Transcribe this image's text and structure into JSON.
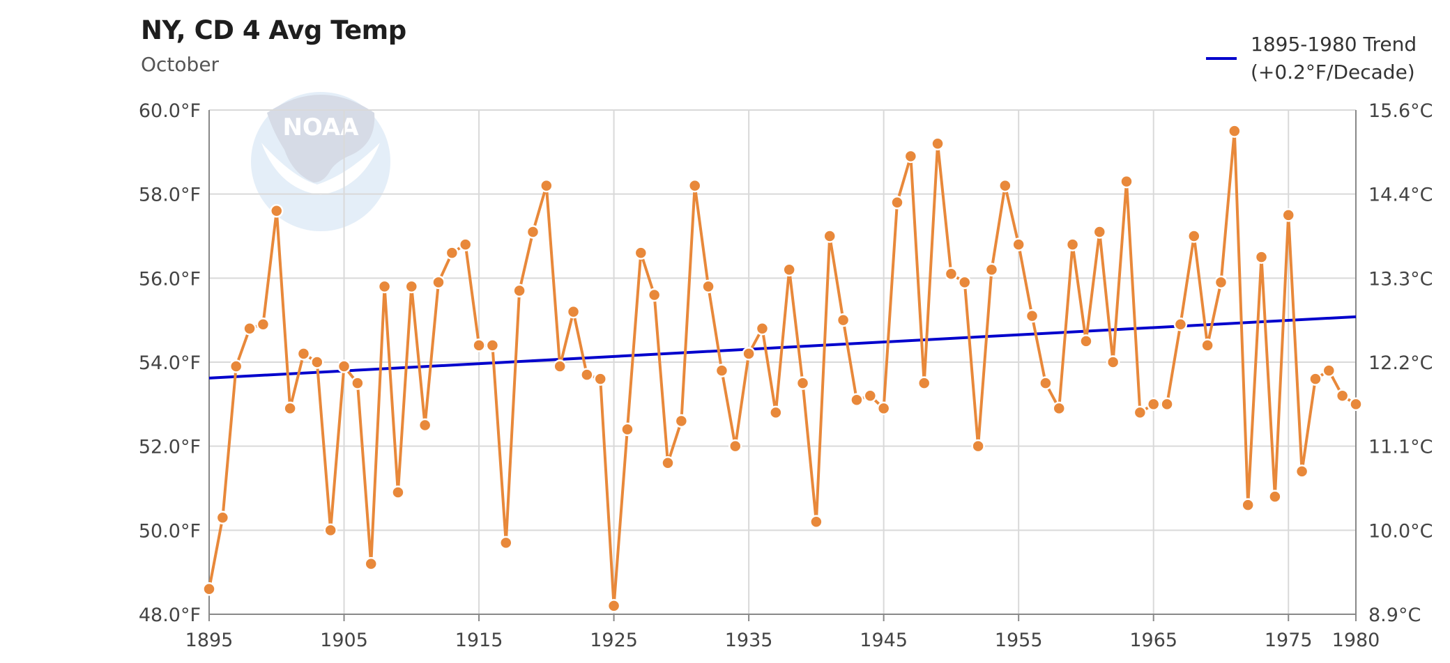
{
  "chart_data": {
    "type": "line",
    "title": "NY, CD 4 Avg Temp",
    "subtitle": "October",
    "x": [
      1895,
      1896,
      1897,
      1898,
      1899,
      1900,
      1901,
      1902,
      1903,
      1904,
      1905,
      1906,
      1907,
      1908,
      1909,
      1910,
      1911,
      1912,
      1913,
      1914,
      1915,
      1916,
      1917,
      1918,
      1919,
      1920,
      1921,
      1922,
      1923,
      1924,
      1925,
      1926,
      1927,
      1928,
      1929,
      1930,
      1931,
      1932,
      1933,
      1934,
      1935,
      1936,
      1937,
      1938,
      1939,
      1940,
      1941,
      1942,
      1943,
      1944,
      1945,
      1946,
      1947,
      1948,
      1949,
      1950,
      1951,
      1952,
      1953,
      1954,
      1955,
      1956,
      1957,
      1958,
      1959,
      1960,
      1961,
      1962,
      1963,
      1964,
      1965,
      1966,
      1967,
      1968,
      1969,
      1970,
      1971,
      1972,
      1973,
      1974,
      1975,
      1976,
      1977,
      1978,
      1979,
      1980
    ],
    "series": [
      {
        "values": [
          48.6,
          50.3,
          53.9,
          54.8,
          54.9,
          57.6,
          52.9,
          54.2,
          54.0,
          50.0,
          53.9,
          53.5,
          49.2,
          55.8,
          50.9,
          55.8,
          52.5,
          55.9,
          56.6,
          56.8,
          54.4,
          54.4,
          49.7,
          55.7,
          57.1,
          58.2,
          53.9,
          55.2,
          53.7,
          53.6,
          48.2,
          52.4,
          56.6,
          55.6,
          51.6,
          52.6,
          58.2,
          55.8,
          53.8,
          52.0,
          54.2,
          54.8,
          52.8,
          56.2,
          53.5,
          50.2,
          57.0,
          55.0,
          53.1,
          53.2,
          52.9,
          57.8,
          58.9,
          53.5,
          59.2,
          56.1,
          55.9,
          52.0,
          56.2,
          58.2,
          56.8,
          55.1,
          53.5,
          52.9,
          56.8,
          54.5,
          57.1,
          54.0,
          58.3,
          52.8,
          53.0,
          53.0,
          54.9,
          57.0,
          54.4,
          55.9,
          59.5,
          50.6,
          56.5,
          50.8,
          57.5,
          51.4,
          53.6,
          53.8,
          53.2,
          53.0
        ],
        "color": "#e8883a"
      },
      {
        "name": "1895-1980 Trend",
        "start": [
          1895,
          53.62
        ],
        "end": [
          1980,
          55.08
        ],
        "color": "#0000cc"
      }
    ],
    "xticks": [
      "1895",
      "1905",
      "1915",
      "1925",
      "1935",
      "1945",
      "1955",
      "1965",
      "1975",
      "1980"
    ],
    "yticks_left": [
      "48.0°F",
      "50.0°F",
      "52.0°F",
      "54.0°F",
      "56.0°F",
      "58.0°F",
      "60.0°F"
    ],
    "yticks_right": [
      "8.9°C",
      "10.0°C",
      "11.1°C",
      "12.2°C",
      "13.3°C",
      "14.4°C",
      "15.6°C"
    ],
    "xlim": [
      1895,
      1980
    ],
    "ylim": [
      48,
      60
    ],
    "grid": true,
    "legend_position": "top-right",
    "legend": {
      "line1": "1895-1980 Trend",
      "line2": "(+0.2°F/Decade)"
    }
  },
  "watermark": {
    "text": "NOAA",
    "colors": {
      "circle": "#dbe9f6",
      "top": "#c9d0de"
    }
  }
}
